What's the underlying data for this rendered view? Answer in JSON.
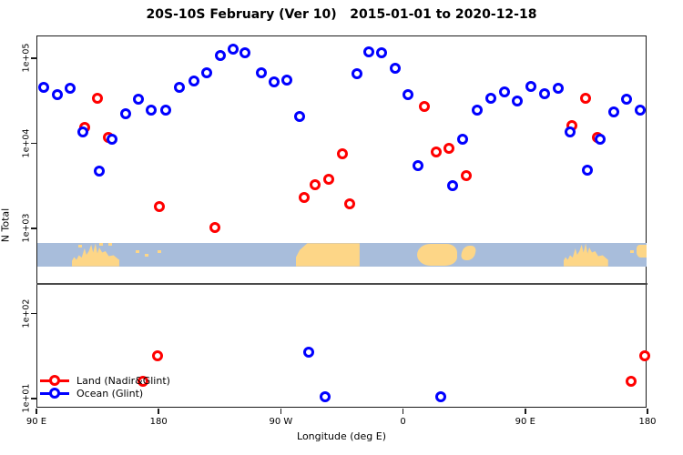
{
  "title": "20S-10S February (Ver 10)   2015-01-01 to 2020-12-18",
  "chart_data": {
    "type": "scatter",
    "title": "20S-10S February (Ver 10)   2015-01-01 to 2020-12-18",
    "xlabel": "Longitude (deg E)",
    "ylabel": "N Total",
    "x_axis": {
      "tick_labels": [
        "90 E",
        "180",
        "90 W",
        "0",
        "90 E",
        "180"
      ],
      "tick_deg": [
        0,
        90,
        180,
        270,
        360,
        450
      ],
      "span_deg": 450,
      "note": "longitude axis wraps around: 90E to 180 to 90W to 0 to 90E to 180"
    },
    "y_axis": {
      "scale": "log10",
      "tick_labels": [
        "1e+05",
        "1e+04",
        "1e+03",
        "1e+02",
        "1e+01"
      ],
      "tick_log10": [
        5,
        4,
        3,
        2,
        1
      ],
      "ylim_log10": [
        0.88,
        5.27
      ],
      "grid": false
    },
    "legend": [
      {
        "label": "Land (Nadir&Glint)",
        "color": "#ff0000"
      },
      {
        "label": "Ocean (Glint)",
        "color": "#0000ff"
      }
    ],
    "series": [
      {
        "name": "Land (Nadir&Glint)",
        "color": "#ff0000",
        "marker": "open-circle",
        "points": [
          {
            "d": 35.5,
            "n": 15500
          },
          {
            "d": 44.9,
            "n": 33800
          },
          {
            "d": 52.9,
            "n": 11800
          },
          {
            "d": 90.4,
            "n": 1810
          },
          {
            "d": 131.3,
            "n": 1030
          },
          {
            "d": 196.9,
            "n": 2330
          },
          {
            "d": 204.9,
            "n": 3260
          },
          {
            "d": 215.6,
            "n": 3800
          },
          {
            "d": 225.0,
            "n": 7550
          },
          {
            "d": 231.0,
            "n": 1950
          },
          {
            "d": 285.9,
            "n": 27100
          },
          {
            "d": 294.6,
            "n": 7920
          },
          {
            "d": 304.0,
            "n": 8750
          },
          {
            "d": 316.7,
            "n": 4180
          },
          {
            "d": 394.4,
            "n": 16200
          },
          {
            "d": 404.5,
            "n": 33800
          },
          {
            "d": 413.2,
            "n": 11800
          },
          {
            "d": 78.3,
            "n": 16
          },
          {
            "d": 89.0,
            "n": 32
          },
          {
            "d": 437.9,
            "n": 15.8
          },
          {
            "d": 448.0,
            "n": 31.5
          }
        ]
      },
      {
        "name": "Ocean (Glint)",
        "color": "#0000ff",
        "marker": "open-circle",
        "points": [
          {
            "d": 5.4,
            "n": 45500
          },
          {
            "d": 15.4,
            "n": 37400
          },
          {
            "d": 24.8,
            "n": 44400
          },
          {
            "d": 34.2,
            "n": 13600
          },
          {
            "d": 46.2,
            "n": 4730
          },
          {
            "d": 55.6,
            "n": 11200
          },
          {
            "d": 65.6,
            "n": 22300
          },
          {
            "d": 75.0,
            "n": 33000
          },
          {
            "d": 84.4,
            "n": 24600
          },
          {
            "d": 95.1,
            "n": 24600
          },
          {
            "d": 105.1,
            "n": 45500
          },
          {
            "d": 115.8,
            "n": 54000
          },
          {
            "d": 125.2,
            "n": 67500
          },
          {
            "d": 135.3,
            "n": 108000
          },
          {
            "d": 144.6,
            "n": 128000
          },
          {
            "d": 153.3,
            "n": 116000
          },
          {
            "d": 165.4,
            "n": 67500
          },
          {
            "d": 174.8,
            "n": 52800
          },
          {
            "d": 184.2,
            "n": 55400
          },
          {
            "d": 193.5,
            "n": 20700
          },
          {
            "d": 236.4,
            "n": 65800
          },
          {
            "d": 245.1,
            "n": 119000
          },
          {
            "d": 254.5,
            "n": 116000
          },
          {
            "d": 264.5,
            "n": 76300
          },
          {
            "d": 273.9,
            "n": 37400
          },
          {
            "d": 281.3,
            "n": 5480
          },
          {
            "d": 306.7,
            "n": 3180
          },
          {
            "d": 314.1,
            "n": 11200
          },
          {
            "d": 324.8,
            "n": 24600
          },
          {
            "d": 334.8,
            "n": 33800
          },
          {
            "d": 344.9,
            "n": 40300
          },
          {
            "d": 354.2,
            "n": 31300
          },
          {
            "d": 364.3,
            "n": 46600
          },
          {
            "d": 374.3,
            "n": 38300
          },
          {
            "d": 384.4,
            "n": 44400
          },
          {
            "d": 393.1,
            "n": 13600
          },
          {
            "d": 405.8,
            "n": 4850
          },
          {
            "d": 415.2,
            "n": 11200
          },
          {
            "d": 425.2,
            "n": 23400
          },
          {
            "d": 434.6,
            "n": 33000
          },
          {
            "d": 444.6,
            "n": 24600
          },
          {
            "d": 200.2,
            "n": 35
          },
          {
            "d": 212.9,
            "n": 10.5
          },
          {
            "d": 298.0,
            "n": 10.5
          }
        ]
      }
    ],
    "map_strip": {
      "description": "world-map band inset (20S-10S latitude)",
      "ocean_color": "#a8bddb",
      "land_color": "#fdd687",
      "n_range_log10": [
        2.555,
        2.825
      ],
      "land": [
        {
          "name": "australia",
          "deg0": 26,
          "deg1": 61,
          "kind": "jagged"
        },
        {
          "name": "south-america",
          "deg0": 191,
          "deg1": 238,
          "kind": "blob-left-slope"
        },
        {
          "name": "africa",
          "deg0": 280,
          "deg1": 310,
          "kind": "blob"
        },
        {
          "name": "madagascar",
          "deg0": 313,
          "deg1": 323,
          "kind": "sliver"
        },
        {
          "name": "australia-repeat",
          "deg0": 388,
          "deg1": 421,
          "kind": "jagged"
        },
        {
          "name": "fiji",
          "deg0": 442,
          "deg1": 450,
          "kind": "blob-top"
        }
      ],
      "islands": [
        {
          "deg": 30.8,
          "y": 0.05
        },
        {
          "deg": 46.2,
          "y": 0.0
        },
        {
          "deg": 52.9,
          "y": 0.0
        },
        {
          "deg": 73.0,
          "y": 0.3
        },
        {
          "deg": 80.0,
          "y": 0.45
        },
        {
          "deg": 89.0,
          "y": 0.3
        },
        {
          "deg": 437.0,
          "y": 0.3
        }
      ]
    },
    "separator_line_n": 220
  }
}
